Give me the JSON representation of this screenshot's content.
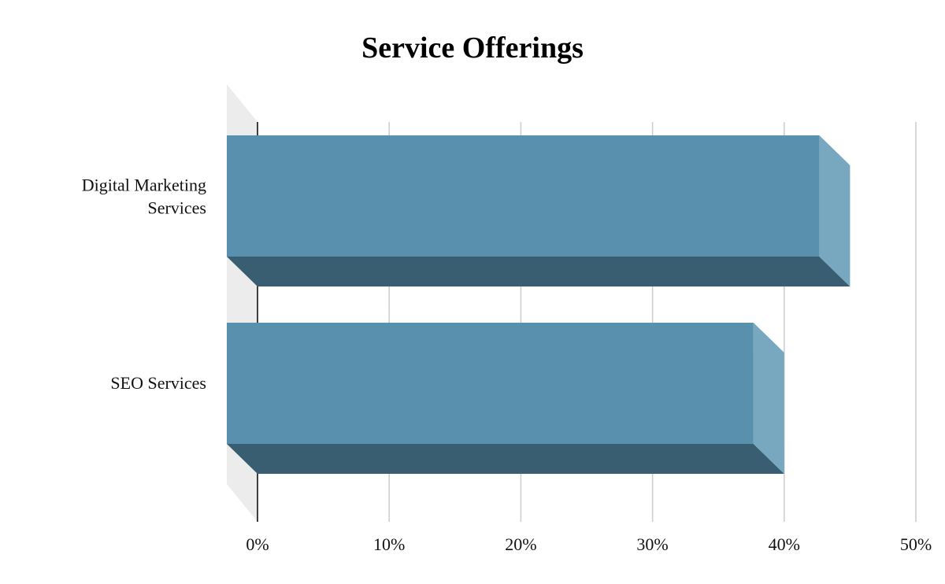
{
  "chart_data": {
    "type": "bar",
    "orientation": "horizontal",
    "style": "3d",
    "title": "Service Offerings",
    "xlabel": "",
    "ylabel": "",
    "categories": [
      [
        "Digital Marketing",
        "Services"
      ],
      [
        "SEO Services"
      ]
    ],
    "values": [
      45,
      40
    ],
    "value_unit": "%",
    "xlim": [
      0,
      50
    ],
    "ticks": [
      "0%",
      "10%",
      "20%",
      "30%",
      "40%",
      "50%"
    ],
    "tick_values": [
      0,
      10,
      20,
      30,
      40,
      50
    ],
    "grid": true,
    "legend": "none",
    "colors": {
      "bar_front": "#5990ae",
      "bar_side": "#77a8c0",
      "bar_bottom": "#395e71",
      "wall": "#ececec",
      "grid": "#cccccc",
      "axis": "#000000"
    }
  }
}
